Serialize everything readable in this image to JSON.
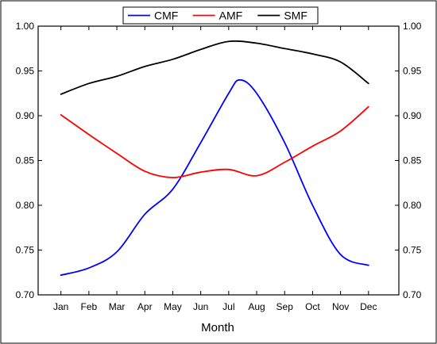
{
  "chart_data": {
    "type": "line",
    "xlabel": "Month",
    "ylabel": "",
    "categories": [
      "Jan",
      "Feb",
      "Mar",
      "Apr",
      "May",
      "Jun",
      "Jul",
      "Aug",
      "Sep",
      "Oct",
      "Nov",
      "Dec"
    ],
    "ylim": [
      0.7,
      1.0
    ],
    "y_ticks": [
      "0.70",
      "0.75",
      "0.80",
      "0.85",
      "0.90",
      "0.95",
      "1.00"
    ],
    "right_axis_mirrored": true,
    "legend_position": "top-center",
    "grid": false,
    "series": [
      {
        "name": "CMF",
        "color": "#0000ff",
        "points": [
          [
            1,
            0.722
          ],
          [
            2,
            0.73
          ],
          [
            3,
            0.748
          ],
          [
            4,
            0.79
          ],
          [
            5,
            0.818
          ],
          [
            6,
            0.87
          ],
          [
            7,
            0.925
          ],
          [
            7.4,
            0.94
          ],
          [
            8,
            0.925
          ],
          [
            9,
            0.87
          ],
          [
            10,
            0.8
          ],
          [
            11,
            0.745
          ],
          [
            12,
            0.733
          ]
        ]
      },
      {
        "name": "AMF",
        "color": "#ff0000",
        "points": [
          [
            1,
            0.901
          ],
          [
            2,
            0.879
          ],
          [
            3,
            0.858
          ],
          [
            4,
            0.838
          ],
          [
            5,
            0.831
          ],
          [
            6,
            0.837
          ],
          [
            7,
            0.84
          ],
          [
            8,
            0.833
          ],
          [
            9,
            0.848
          ],
          [
            10,
            0.866
          ],
          [
            11,
            0.883
          ],
          [
            12,
            0.91
          ]
        ]
      },
      {
        "name": "SMF",
        "color": "#000000",
        "points": [
          [
            1,
            0.924
          ],
          [
            2,
            0.936
          ],
          [
            3,
            0.944
          ],
          [
            4,
            0.955
          ],
          [
            5,
            0.963
          ],
          [
            6,
            0.974
          ],
          [
            7,
            0.983
          ],
          [
            8,
            0.981
          ],
          [
            9,
            0.975
          ],
          [
            10,
            0.969
          ],
          [
            11,
            0.96
          ],
          [
            12,
            0.936
          ]
        ]
      }
    ]
  }
}
